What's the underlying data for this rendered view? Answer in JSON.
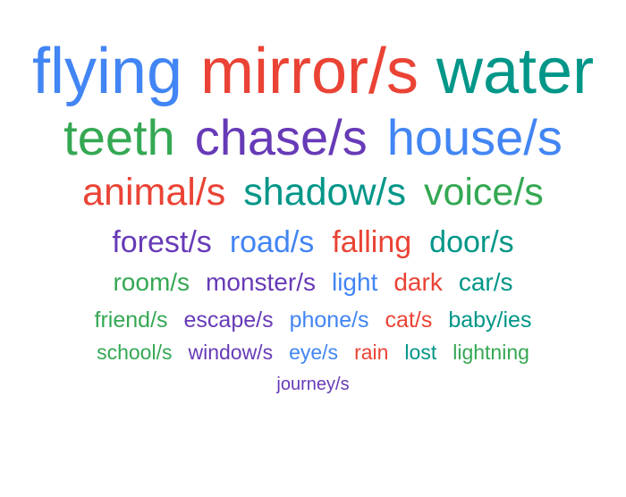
{
  "colors": {
    "blue": "#4285f4",
    "red": "#ea4335",
    "teal": "#009688",
    "green": "#34a853",
    "purple": "#673ab7"
  },
  "rows": [
    {
      "words": [
        {
          "text": "flying",
          "color": "blue"
        },
        {
          "text": "mirror/s",
          "color": "red"
        },
        {
          "text": "water",
          "color": "teal"
        }
      ]
    },
    {
      "words": [
        {
          "text": "teeth",
          "color": "green"
        },
        {
          "text": "chase/s",
          "color": "purple"
        },
        {
          "text": "house/s",
          "color": "blue"
        }
      ]
    },
    {
      "words": [
        {
          "text": "animal/s",
          "color": "red"
        },
        {
          "text": "shadow/s",
          "color": "teal"
        },
        {
          "text": "voice/s",
          "color": "green"
        }
      ]
    },
    {
      "words": [
        {
          "text": "forest/s",
          "color": "purple"
        },
        {
          "text": "road/s",
          "color": "blue"
        },
        {
          "text": "falling",
          "color": "red"
        },
        {
          "text": "door/s",
          "color": "teal"
        }
      ]
    },
    {
      "words": [
        {
          "text": "room/s",
          "color": "green"
        },
        {
          "text": "monster/s",
          "color": "purple"
        },
        {
          "text": "light",
          "color": "blue"
        },
        {
          "text": "dark",
          "color": "red"
        },
        {
          "text": "car/s",
          "color": "teal"
        }
      ]
    },
    {
      "words": [
        {
          "text": "friend/s",
          "color": "green"
        },
        {
          "text": "escape/s",
          "color": "purple"
        },
        {
          "text": "phone/s",
          "color": "blue"
        },
        {
          "text": "cat/s",
          "color": "red"
        },
        {
          "text": "baby/ies",
          "color": "teal"
        }
      ]
    },
    {
      "words": [
        {
          "text": "school/s",
          "color": "green"
        },
        {
          "text": "window/s",
          "color": "purple"
        },
        {
          "text": "eye/s",
          "color": "blue"
        },
        {
          "text": "rain",
          "color": "red"
        },
        {
          "text": "lost",
          "color": "teal"
        },
        {
          "text": "lightning",
          "color": "green"
        }
      ]
    },
    {
      "words": [
        {
          "text": "journey/s",
          "color": "purple"
        }
      ]
    }
  ]
}
